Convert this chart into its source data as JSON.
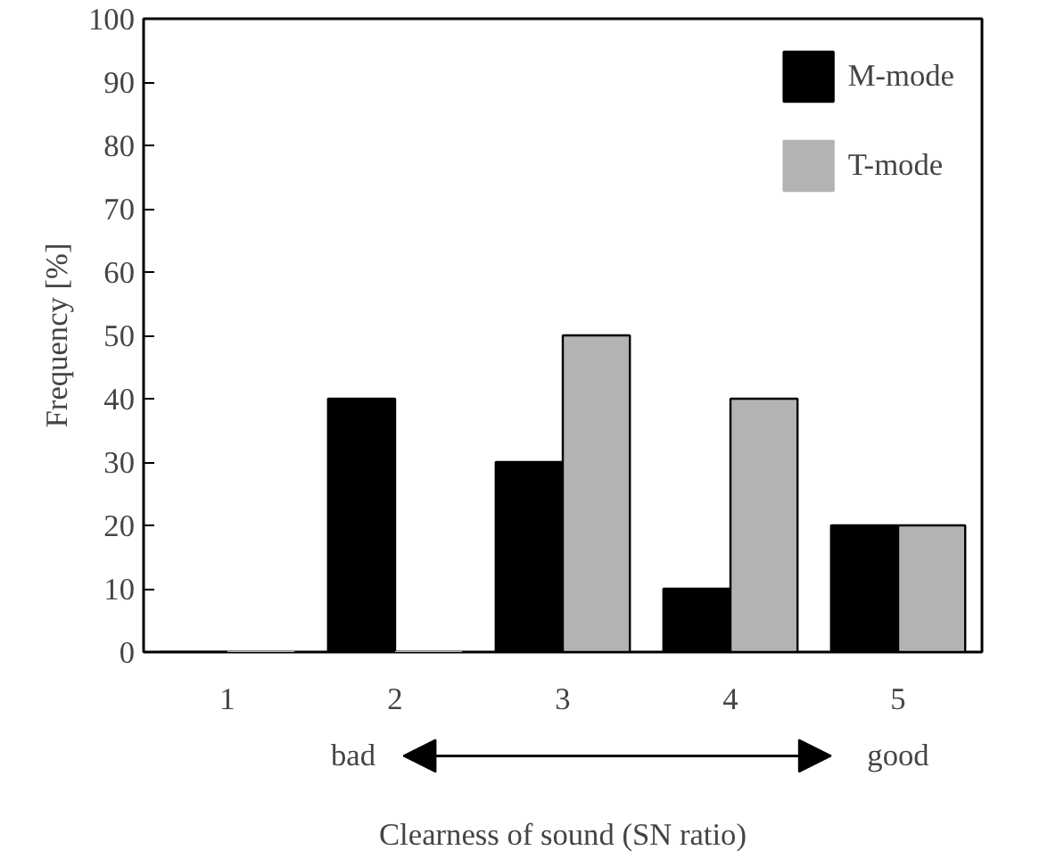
{
  "chart_data": {
    "type": "bar",
    "xlabel": "Clearness of sound (SN ratio)",
    "ylabel": "Frequency [%]",
    "categories": [
      "1",
      "2",
      "3",
      "4",
      "5"
    ],
    "series": [
      {
        "name": "M-mode",
        "color": "#000000",
        "values": [
          0,
          40,
          30,
          10,
          20
        ]
      },
      {
        "name": "T-mode",
        "color": "#b3b3b3",
        "values": [
          0,
          0,
          50,
          40,
          20
        ]
      }
    ],
    "ylim": [
      0,
      100
    ],
    "yticks": [
      0,
      10,
      20,
      30,
      40,
      50,
      60,
      70,
      80,
      90,
      100
    ],
    "annotations": [
      "bad",
      "good"
    ],
    "legend": "top right",
    "grid": false
  }
}
